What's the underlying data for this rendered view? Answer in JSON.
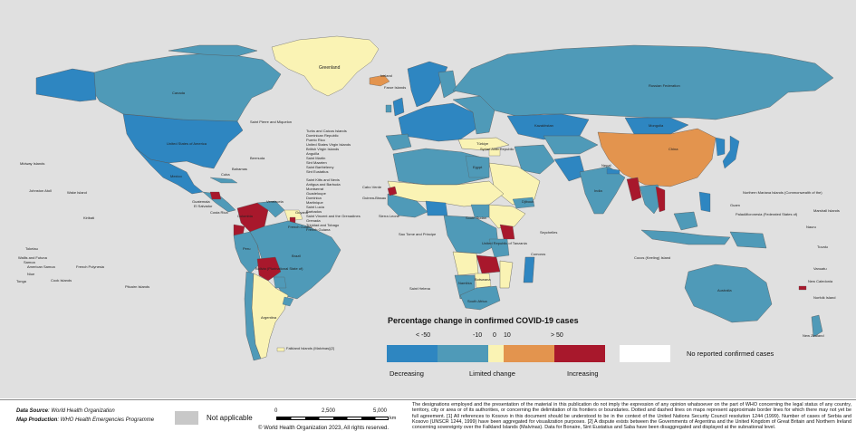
{
  "colors": {
    "ocean": "#e0e0e0",
    "decreasing_strong": "#2e86c1",
    "decreasing": "#4f9ab8",
    "limited": "#faf3b4",
    "increasing_moderate": "#e3944e",
    "increasing": "#a8182c",
    "no_report": "#ffffff",
    "not_applicable": "#c8c8c8"
  },
  "legend": {
    "title": "Percentage change in confirmed COVID-19 cases",
    "ticks": [
      "< -50",
      "-10",
      "0",
      "10",
      "> 50"
    ],
    "categories": [
      "Decreasing",
      "Limited change",
      "Increasing"
    ],
    "no_report_label": "No reported confirmed cases"
  },
  "labels": {
    "greenland": "Greenland",
    "iceland": "Iceland",
    "canada": "Canada",
    "usa": "United States of America",
    "russia": "Russian Federation",
    "china": "China",
    "brazil": "Brazil",
    "peru": "Peru",
    "argentina": "Argentina",
    "bolivia": "Bolivia (Plurinational State of)",
    "australia": "Australia",
    "new_zealand": "New Zealand",
    "india": "India",
    "nepal": "Nepal",
    "egypt": "Egypt",
    "kazakhstan": "Kazakhstan",
    "mongolia": "Mongolia",
    "faroe": "Faroe Islands",
    "saint_pierre": "Saint Pierre and Miquelon",
    "bermuda": "Bermuda",
    "bahamas": "Bahamas",
    "mexico": "Mexico",
    "cuba": "Cuba",
    "guatemala": "Guatemala",
    "el_salvador": "El Salvador",
    "costa_rica": "Costa Rica",
    "colombia": "Colombia",
    "venezuela": "Venezuela",
    "guyana": "Guyana",
    "french_guiana": "French Guiana",
    "cabo_verde": "Cabo Verde",
    "sierra_leone": "Sierra Leone",
    "guinea_bissau": "Guinea-Bissau",
    "sao_tome": "Sao Tome and Principe",
    "saint_helena": "Saint Helena",
    "seychelles": "Seychelles",
    "comoros": "Comoros",
    "djibouti": "Djibouti",
    "south_sudan": "South Sudan",
    "tanzania": "United Republic of Tanzania",
    "namibia": "Namibia",
    "south_africa": "South Africa",
    "botswana": "Botswana",
    "syria": "Syrian Arab Republic",
    "turkiye": "Türkiye",
    "cocos": "Cocos (Keeling) Island",
    "midway": "Midway Islands",
    "johnston": "Johnston Atoll",
    "wake": "Wake Island",
    "kiribati": "Kiribati",
    "samoa": "Samoa",
    "tokelau": "Tokelau",
    "wallis": "Wallis and Futuna",
    "am_samoa": "American Samoa",
    "niue": "Niue",
    "tonga": "Tonga",
    "cook": "Cook Islands",
    "fr_polynesia": "French Polynesia",
    "pitcairn": "Pitcairn Islands",
    "n_mariana": "Northern Mariana Islands (Commonwealth of the)",
    "micronesia": "Micronesia (Federated States of)",
    "guam": "Guam",
    "palau": "Palau",
    "marshall": "Marshall Islands",
    "nauru": "Nauru",
    "tuvalu": "Tuvalu",
    "vanuatu": "Vanuatu",
    "new_caledonia": "New Caledonia",
    "norfolk": "Norfolk Island",
    "falklands": "Falkland Islands (Malvinas)[2]",
    "caribbean_list": [
      "Turks and Caicos Islands",
      "Dominican Republic",
      "Puerto Rico",
      "United States Virgin Islands",
      "British Virgin Islands",
      "Anguilla",
      "Saint Martin",
      "Sint Maarten",
      "Saint Barthélemy",
      "Sint Eustatius",
      "Saint Kitts and Nevis",
      "Antigua and Barbuda",
      "Montserrat",
      "Guadeloupe",
      "Dominica",
      "Martinique",
      "Saint Lucia",
      "Barbados",
      "Saint Vincent and the Grenadines",
      "Grenada",
      "Trinidad and Tobago",
      "French Guiana"
    ]
  },
  "footer": {
    "data_source_label": "Data Source",
    "data_source_value": ": World Health Organization",
    "map_production_label": "Map Production",
    "map_production_value": ": WHO Health Emergencies Programme",
    "not_applicable": "Not applicable",
    "scale_0": "0",
    "scale_1": "2,500",
    "scale_2": "5,000",
    "scale_unit": "km",
    "copyright": "© World Health Organization  2023,  All rights reserved.",
    "disclaimer": "The designations employed and the presentation of the material in this publication do not imply the expression of any opinion whatsoever on the part of WHO concerning the legal status of any country, territory, city or area or of its authorities, or concerning the delimitation of its frontiers or boundaries. Dotted and dashed lines on maps represent approximate border lines for which there may not yet be full agreement. [1] All references to Kosovo in this document should be understood to be in the context of the United Nations Security Council resolution 1244 (1999). Number of cases of Serbia and Kosovo (UNSCR 1244, 1999) have been aggregated for visualization purposes. [2] A dispute exists between the Governments of Argentina and the United Kingdom of Great Britain and Northern Ireland concerning sovereignty over the Falkland Islands (Malvinas). Data for Bonaire, Sint Eustatius and Saba have been disaggregated and displayed at the subnational level."
  }
}
